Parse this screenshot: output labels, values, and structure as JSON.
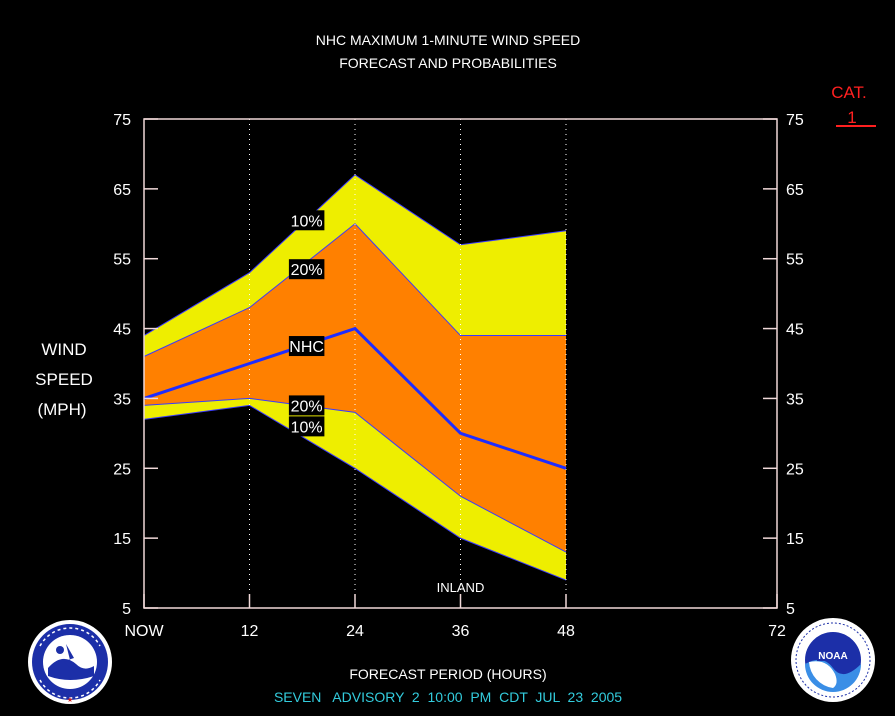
{
  "chart_data": {
    "type": "area",
    "title": "NHC MAXIMUM 1-MINUTE WIND SPEED",
    "subtitle": "FORECAST AND PROBABILITIES",
    "xlabel": "FORECAST PERIOD (HOURS)",
    "ylabel_lines": [
      "WIND",
      "SPEED",
      "(MPH)"
    ],
    "xlim": [
      0,
      72
    ],
    "ylim": [
      5,
      75
    ],
    "x_ticks": [
      {
        "value": 0,
        "label": "NOW"
      },
      {
        "value": 12,
        "label": "12"
      },
      {
        "value": 24,
        "label": "24"
      },
      {
        "value": 36,
        "label": "36"
      },
      {
        "value": 48,
        "label": "48"
      },
      {
        "value": 72,
        "label": "72"
      }
    ],
    "y_ticks": [
      5,
      15,
      25,
      35,
      45,
      55,
      65,
      75
    ],
    "x": [
      0,
      12,
      24,
      36,
      48
    ],
    "bands": {
      "upper_10": [
        44,
        53,
        67,
        57,
        59
      ],
      "upper_20": [
        41,
        48,
        60,
        44,
        44
      ],
      "nhc_forecast": [
        35,
        40,
        45,
        30,
        25
      ],
      "lower_20": [
        34,
        35,
        33,
        21,
        13
      ],
      "lower_10": [
        32,
        34,
        25,
        15,
        9
      ]
    },
    "band_labels": [
      {
        "text": "10%",
        "x": 18.5,
        "y": 60.5
      },
      {
        "text": "20%",
        "x": 18.5,
        "y": 53.5
      },
      {
        "text": "NHC",
        "x": 18.5,
        "y": 42.5
      },
      {
        "text": "20%",
        "x": 18.5,
        "y": 34.0
      },
      {
        "text": "10%",
        "x": 18.5,
        "y": 31.0
      }
    ],
    "annotation": {
      "text": "INLAND",
      "x": 36,
      "y": 8
    },
    "category": {
      "line1": "CAT.",
      "line2": "1"
    },
    "advisory": "SEVEN   ADVISORY  2  10:00  PM  CDT  JUL  23  2005",
    "colors": {
      "yellow": "#eeee00",
      "orange": "#ff8000",
      "forecast_line": "#1e2cff",
      "axis": "#f0d8d8",
      "category": "#ff2020",
      "advisory": "#33ccdd"
    },
    "logos": {
      "left": "National Weather Service",
      "right": "NOAA"
    }
  }
}
